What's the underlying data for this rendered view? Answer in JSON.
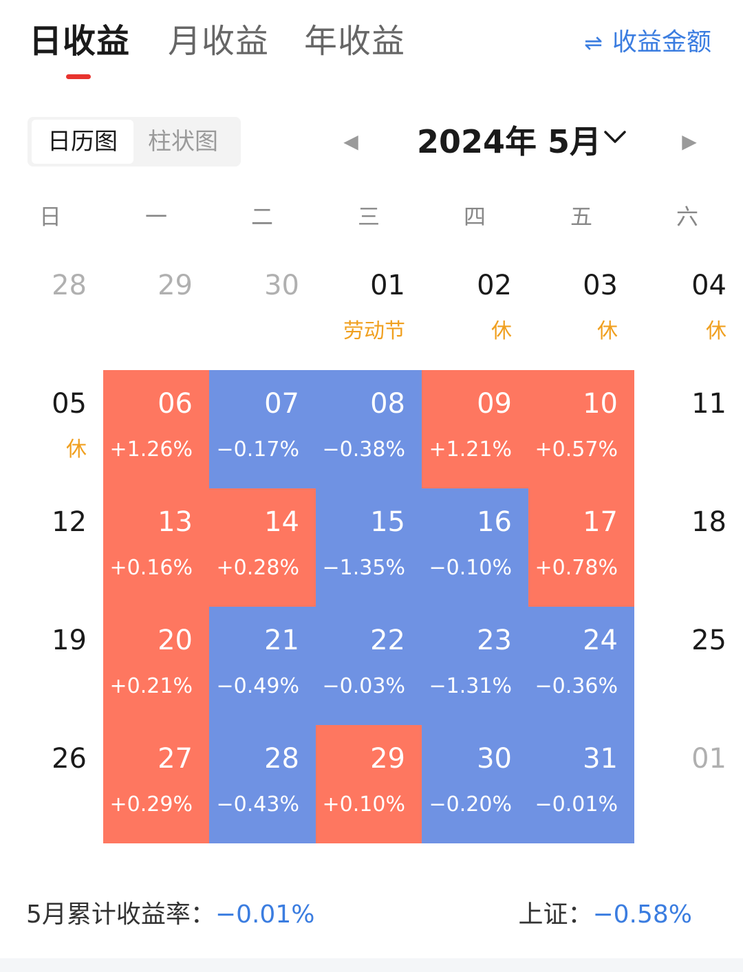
{
  "tabs": [
    {
      "label": "日收益",
      "active": true
    },
    {
      "label": "月收益",
      "active": false
    },
    {
      "label": "年收益",
      "active": false
    }
  ],
  "toggle": {
    "icon": "swap-arrows-icon",
    "icon_glyph": "⇌",
    "label": "收益金额"
  },
  "view_switch": {
    "calendar_label": "日历图",
    "bar_label": "柱状图",
    "selected": "日历图"
  },
  "month_nav": {
    "label": "2024年 5月"
  },
  "weekdays": [
    "日",
    "一",
    "二",
    "三",
    "四",
    "五",
    "六"
  ],
  "colors": {
    "up": "#fe7760",
    "down": "#6f92e3",
    "holiday": "#f0a020",
    "accent": "#3b7de0",
    "tab_underline": "#e8332e"
  },
  "weeks": [
    [
      {
        "day": "28",
        "muted": true
      },
      {
        "day": "29",
        "muted": true
      },
      {
        "day": "30",
        "muted": true
      },
      {
        "day": "01",
        "sub": "劳动节",
        "holiday": true
      },
      {
        "day": "02",
        "sub": "休",
        "holiday": true
      },
      {
        "day": "03",
        "sub": "休",
        "holiday": true
      },
      {
        "day": "04",
        "sub": "休",
        "holiday": true
      }
    ],
    [
      {
        "day": "05",
        "sub": "休",
        "holiday": true
      },
      {
        "day": "06",
        "sub": "+1.26%",
        "trend": "up"
      },
      {
        "day": "07",
        "sub": "−0.17%",
        "trend": "down"
      },
      {
        "day": "08",
        "sub": "−0.38%",
        "trend": "down"
      },
      {
        "day": "09",
        "sub": "+1.21%",
        "trend": "up"
      },
      {
        "day": "10",
        "sub": "+0.57%",
        "trend": "up"
      },
      {
        "day": "11"
      }
    ],
    [
      {
        "day": "12"
      },
      {
        "day": "13",
        "sub": "+0.16%",
        "trend": "up"
      },
      {
        "day": "14",
        "sub": "+0.28%",
        "trend": "up"
      },
      {
        "day": "15",
        "sub": "−1.35%",
        "trend": "down"
      },
      {
        "day": "16",
        "sub": "−0.10%",
        "trend": "down"
      },
      {
        "day": "17",
        "sub": "+0.78%",
        "trend": "up"
      },
      {
        "day": "18"
      }
    ],
    [
      {
        "day": "19"
      },
      {
        "day": "20",
        "sub": "+0.21%",
        "trend": "up"
      },
      {
        "day": "21",
        "sub": "−0.49%",
        "trend": "down"
      },
      {
        "day": "22",
        "sub": "−0.03%",
        "trend": "down"
      },
      {
        "day": "23",
        "sub": "−1.31%",
        "trend": "down"
      },
      {
        "day": "24",
        "sub": "−0.36%",
        "trend": "down"
      },
      {
        "day": "25"
      }
    ],
    [
      {
        "day": "26"
      },
      {
        "day": "27",
        "sub": "+0.29%",
        "trend": "up"
      },
      {
        "day": "28",
        "sub": "−0.43%",
        "trend": "down"
      },
      {
        "day": "29",
        "sub": "+0.10%",
        "trend": "up"
      },
      {
        "day": "30",
        "sub": "−0.20%",
        "trend": "down"
      },
      {
        "day": "31",
        "sub": "−0.01%",
        "trend": "down"
      },
      {
        "day": "01",
        "muted": true
      }
    ]
  ],
  "summary": {
    "cumulative_label": "5月累计收益率：",
    "cumulative_value": "−0.01%",
    "index_label": "上证：",
    "index_value": "−0.58%"
  }
}
